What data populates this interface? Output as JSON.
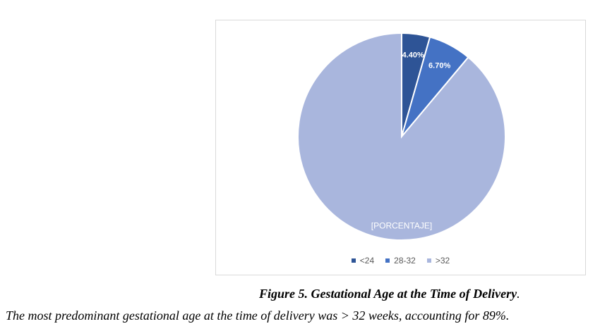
{
  "colors": {
    "slice_lt24": "#2E5496",
    "slice_28_32": "#4472C4",
    "slice_gt32": "#A9B6DD",
    "label_light": "#ffffff",
    "label_big": "#ffffff",
    "legend_text": "#595959"
  },
  "chart_data": {
    "type": "pie",
    "title": "",
    "categories": [
      "<24",
      "28-32",
      ">32"
    ],
    "values": [
      4.4,
      6.7,
      88.9
    ],
    "data_labels": [
      "4.40%",
      "6.70%",
      "[PORCENTAJE]"
    ],
    "legend_position": "bottom",
    "start_angle_deg": 0,
    "direction": "clockwise"
  },
  "legend": {
    "items": [
      {
        "label": "<24"
      },
      {
        "label": "28-32"
      },
      {
        "label": ">32"
      }
    ]
  },
  "caption": {
    "title": "Figure 5. Gestational Age at the Time of Delivery",
    "title_tail": ".",
    "body": "The most predominant gestational age at the time of delivery was > 32 weeks, accounting for 89%."
  }
}
